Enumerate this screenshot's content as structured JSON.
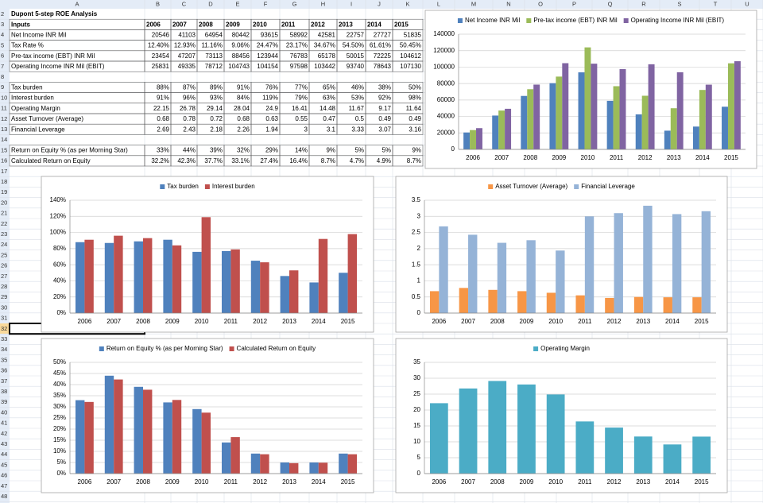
{
  "sheet": {
    "columns": [
      "A",
      "B",
      "C",
      "D",
      "E",
      "F",
      "G",
      "H",
      "I",
      "J",
      "K",
      "L",
      "M",
      "N",
      "O",
      "P",
      "Q",
      "R",
      "S",
      "T",
      "U"
    ],
    "row_numbers": [
      2,
      3,
      4,
      5,
      6,
      7,
      8,
      9,
      10,
      11,
      12,
      13,
      14,
      15,
      16,
      17,
      18,
      19,
      20,
      21,
      22,
      23,
      24,
      25,
      26,
      27,
      28,
      29,
      30,
      31,
      32,
      33,
      34,
      35,
      36,
      37,
      38,
      39,
      40,
      41,
      42,
      43,
      44,
      45,
      46,
      47,
      48
    ],
    "title": "Dupont 5-step ROE Analysis",
    "header": [
      "Inputs",
      "2006",
      "2007",
      "2008",
      "2009",
      "2010",
      "2011",
      "2012",
      "2013",
      "2014",
      "2015"
    ],
    "rows": [
      [
        "Net Income INR Mil",
        "20546",
        "41103",
        "64954",
        "80442",
        "93615",
        "58992",
        "42581",
        "22757",
        "27727",
        "51835"
      ],
      [
        "Tax Rate %",
        "12.40%",
        "12.93%",
        "11.16%",
        "9.06%",
        "24.47%",
        "23.17%",
        "34.67%",
        "54.50%",
        "61.61%",
        "50.45%"
      ],
      [
        "Pre-tax income (EBT) INR Mil",
        "23454",
        "47207",
        "73113",
        "88456",
        "123944",
        "76783",
        "65178",
        "50015",
        "72225",
        "104612"
      ],
      [
        "Operating Income INR Mil (EBIT)",
        "25831",
        "49335",
        "78712",
        "104743",
        "104154",
        "97598",
        "103442",
        "93740",
        "78643",
        "107130"
      ],
      [
        "Tax burden",
        "88%",
        "87%",
        "89%",
        "91%",
        "76%",
        "77%",
        "65%",
        "46%",
        "38%",
        "50%"
      ],
      [
        "Interest burden",
        "91%",
        "96%",
        "93%",
        "84%",
        "119%",
        "79%",
        "63%",
        "53%",
        "92%",
        "98%"
      ],
      [
        "Operating Margin",
        "22.15",
        "26.78",
        "29.14",
        "28.04",
        "24.9",
        "16.41",
        "14.48",
        "11.67",
        "9.17",
        "11.64"
      ],
      [
        "Asset Turnover (Average)",
        "0.68",
        "0.78",
        "0.72",
        "0.68",
        "0.63",
        "0.55",
        "0.47",
        "0.5",
        "0.49",
        "0.49"
      ],
      [
        "Financial Leverage",
        "2.69",
        "2.43",
        "2.18",
        "2.26",
        "1.94",
        "3",
        "3.1",
        "3.33",
        "3.07",
        "3.16"
      ],
      [
        "Return on Equity % (as per Morning Star)",
        "33%",
        "44%",
        "39%",
        "32%",
        "29%",
        "14%",
        "9%",
        "5%",
        "5%",
        "9%"
      ],
      [
        "Calculated Return on Equity",
        "32.2%",
        "42.3%",
        "37.7%",
        "33.1%",
        "27.4%",
        "16.4%",
        "8.7%",
        "4.7%",
        "4.9%",
        "8.7%"
      ]
    ]
  },
  "chart_data": [
    {
      "type": "bar",
      "legend": "top",
      "grid": true,
      "categories": [
        "2006",
        "2007",
        "2008",
        "2009",
        "2010",
        "2011",
        "2012",
        "2013",
        "2014",
        "2015"
      ],
      "series": [
        {
          "name": "Net Income INR Mil",
          "color": "#4f81bd",
          "values": [
            20546,
            41103,
            64954,
            80442,
            93615,
            58992,
            42581,
            22757,
            27727,
            51835
          ]
        },
        {
          "name": "Pre-tax income (EBT) INR Mil",
          "color": "#9bbb59",
          "values": [
            23454,
            47207,
            73113,
            88456,
            123944,
            76783,
            65178,
            50015,
            72225,
            104612
          ]
        },
        {
          "name": "Operating Income INR Mil (EBIT)",
          "color": "#8064a2",
          "values": [
            25831,
            49335,
            78712,
            104743,
            104154,
            97598,
            103442,
            93740,
            78643,
            107130
          ]
        }
      ],
      "ylim": [
        0,
        140000
      ],
      "yticks": [
        0,
        20000,
        40000,
        60000,
        80000,
        100000,
        120000,
        140000
      ]
    },
    {
      "type": "bar",
      "legend": "top",
      "grid": true,
      "categories": [
        "2006",
        "2007",
        "2008",
        "2009",
        "2010",
        "2011",
        "2012",
        "2013",
        "2014",
        "2015"
      ],
      "series": [
        {
          "name": "Tax burden",
          "color": "#4f81bd",
          "values": [
            88,
            87,
            89,
            91,
            76,
            77,
            65,
            46,
            38,
            50
          ]
        },
        {
          "name": "Interest burden",
          "color": "#c0504d",
          "values": [
            91,
            96,
            93,
            84,
            119,
            79,
            63,
            53,
            92,
            98
          ]
        }
      ],
      "ylim": [
        0,
        140
      ],
      "yticks": [
        {
          "value": 0,
          "label": "0%"
        },
        {
          "value": 20,
          "label": "20%"
        },
        {
          "value": 40,
          "label": "40%"
        },
        {
          "value": 60,
          "label": "60%"
        },
        {
          "value": 80,
          "label": "80%"
        },
        {
          "value": 100,
          "label": "100%"
        },
        {
          "value": 120,
          "label": "120%"
        },
        {
          "value": 140,
          "label": "140%"
        }
      ]
    },
    {
      "type": "bar",
      "legend": "top",
      "grid": true,
      "categories": [
        "2006",
        "2007",
        "2008",
        "2009",
        "2010",
        "2011",
        "2012",
        "2013",
        "2014",
        "2015"
      ],
      "series": [
        {
          "name": "Asset Turnover (Average)",
          "color": "#f79646",
          "values": [
            0.68,
            0.78,
            0.72,
            0.68,
            0.63,
            0.55,
            0.47,
            0.5,
            0.49,
            0.49
          ]
        },
        {
          "name": "Financial Leverage",
          "color": "#95b3d7",
          "values": [
            2.69,
            2.43,
            2.18,
            2.26,
            1.94,
            3,
            3.1,
            3.33,
            3.07,
            3.16
          ]
        }
      ],
      "ylim": [
        0,
        3.5
      ],
      "yticks": [
        0,
        0.5,
        1,
        1.5,
        2,
        2.5,
        3,
        3.5
      ]
    },
    {
      "type": "bar",
      "legend": "top",
      "grid": true,
      "categories": [
        "2006",
        "2007",
        "2008",
        "2009",
        "2010",
        "2011",
        "2012",
        "2013",
        "2014",
        "2015"
      ],
      "series": [
        {
          "name": "Return on Equity % (as per Morning Star)",
          "color": "#4f81bd",
          "values": [
            33,
            44,
            39,
            32,
            29,
            14,
            9,
            5,
            5,
            9
          ]
        },
        {
          "name": "Calculated Return on Equity",
          "color": "#c0504d",
          "values": [
            32.2,
            42.3,
            37.7,
            33.1,
            27.4,
            16.4,
            8.7,
            4.7,
            4.9,
            8.7
          ]
        }
      ],
      "ylim": [
        0,
        50
      ],
      "yticks": [
        {
          "value": 0,
          "label": "0%"
        },
        {
          "value": 5,
          "label": "5%"
        },
        {
          "value": 10,
          "label": "10%"
        },
        {
          "value": 15,
          "label": "15%"
        },
        {
          "value": 20,
          "label": "20%"
        },
        {
          "value": 25,
          "label": "25%"
        },
        {
          "value": 30,
          "label": "30%"
        },
        {
          "value": 35,
          "label": "35%"
        },
        {
          "value": 40,
          "label": "40%"
        },
        {
          "value": 45,
          "label": "45%"
        },
        {
          "value": 50,
          "label": "50%"
        }
      ]
    },
    {
      "type": "bar",
      "legend": "top",
      "grid": true,
      "categories": [
        "2006",
        "2007",
        "2008",
        "2009",
        "2010",
        "2011",
        "2012",
        "2013",
        "2014",
        "2015"
      ],
      "series": [
        {
          "name": "Operating Margin",
          "color": "#4bacc6",
          "values": [
            22.15,
            26.78,
            29.14,
            28.04,
            24.9,
            16.41,
            14.48,
            11.67,
            9.17,
            11.64
          ]
        }
      ],
      "ylim": [
        0,
        35
      ],
      "yticks": [
        0,
        5,
        10,
        15,
        20,
        25,
        30,
        35
      ]
    }
  ]
}
